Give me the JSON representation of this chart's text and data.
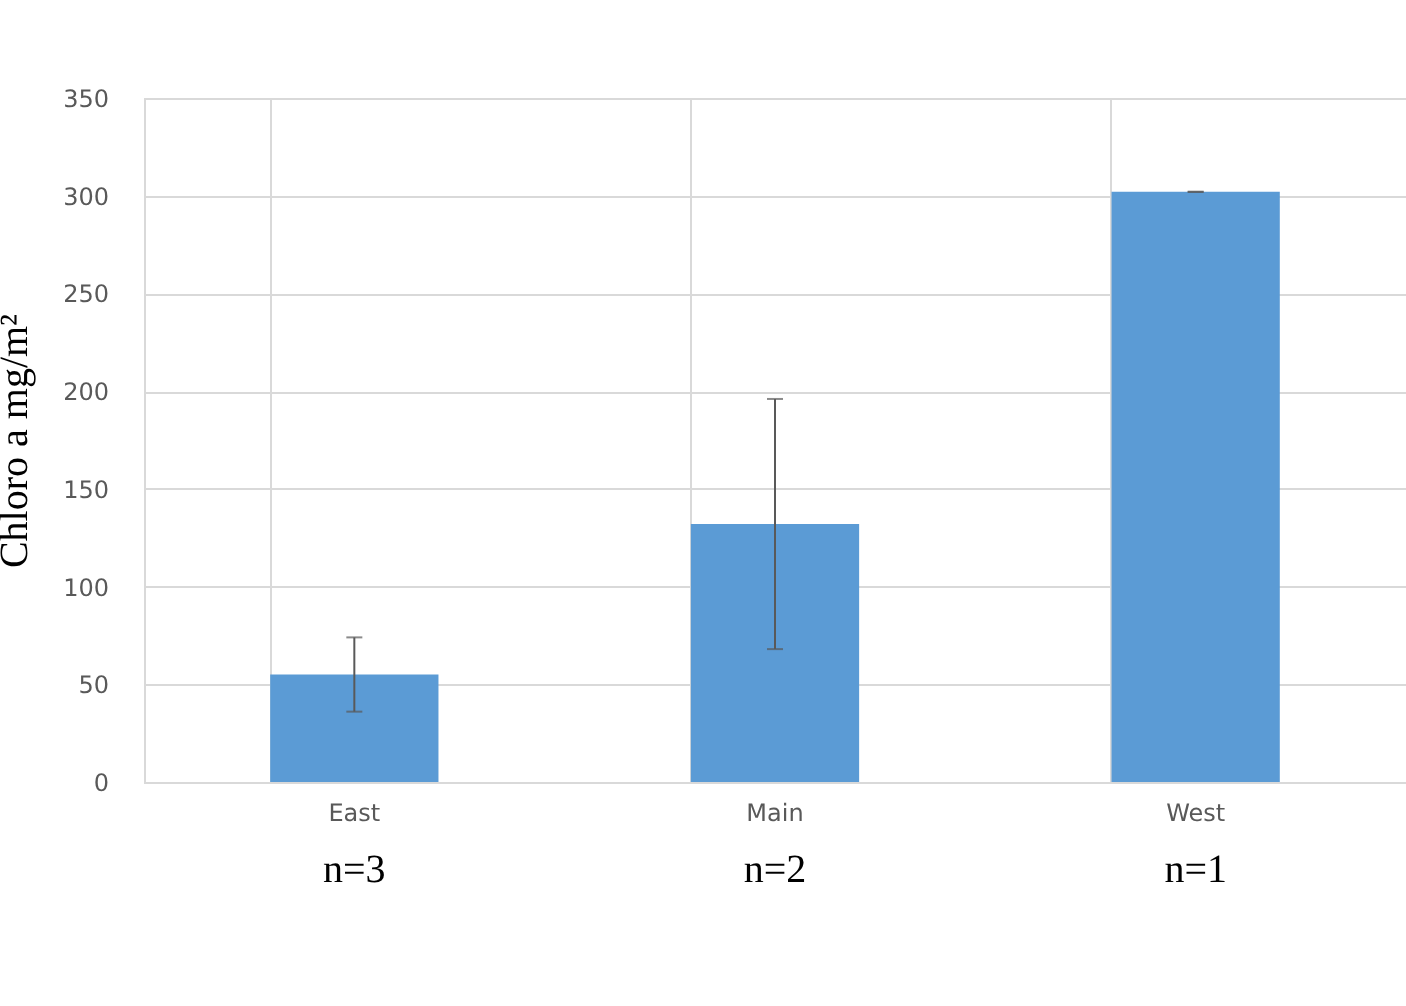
{
  "chart_data": {
    "type": "bar",
    "ylabel": "Chloro a mg/m²",
    "categories": [
      "East",
      "Main",
      "West"
    ],
    "values": [
      55,
      132,
      302
    ],
    "errors": [
      19,
      64,
      0
    ],
    "color": "#5b9bd5",
    "ylim": [
      0,
      350
    ],
    "yticks": [
      0,
      50,
      100,
      150,
      200,
      250,
      300,
      350
    ],
    "grid": true,
    "annotations": [
      "n=3",
      "n=2",
      "n=1"
    ]
  }
}
